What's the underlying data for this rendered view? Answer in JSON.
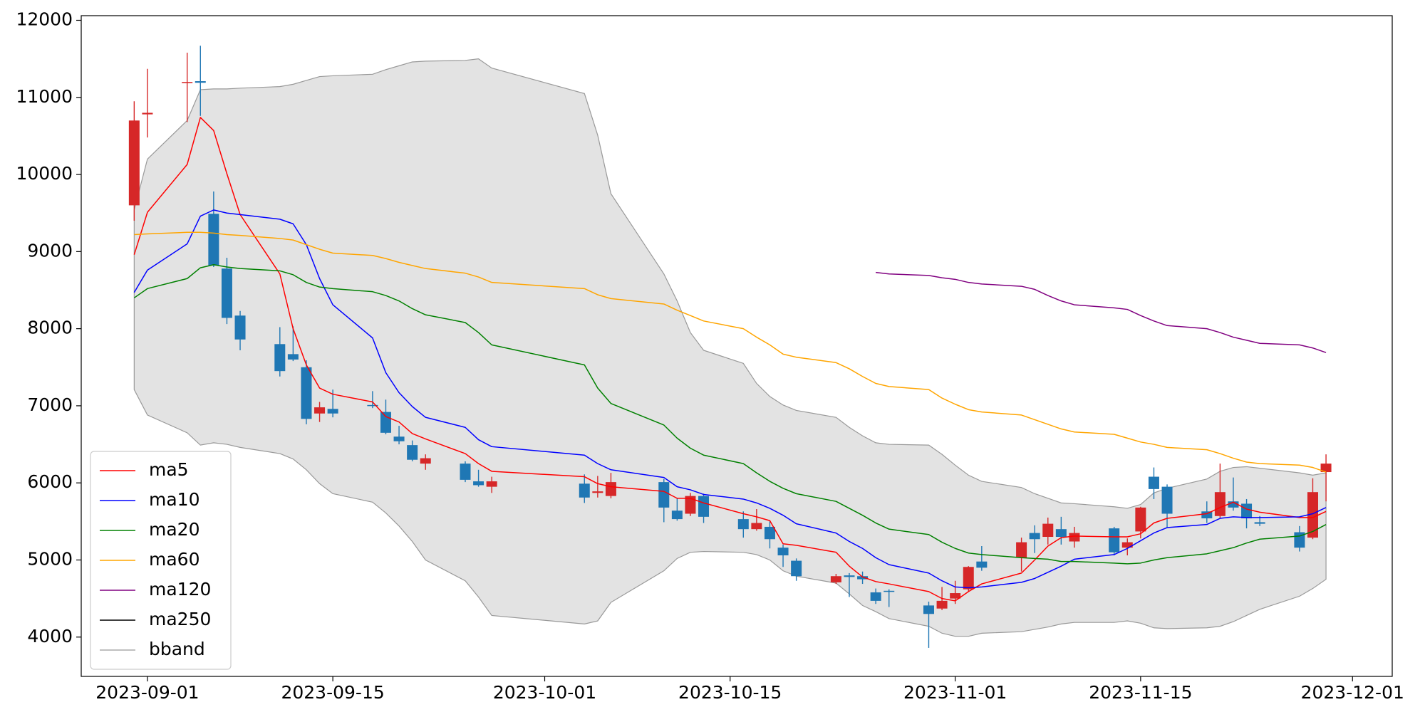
{
  "chart_data": {
    "type": "candlestick",
    "x": [
      "2023-08-31",
      "2023-09-01",
      "2023-09-04",
      "2023-09-05",
      "2023-09-06",
      "2023-09-07",
      "2023-09-08",
      "2023-09-11",
      "2023-09-12",
      "2023-09-13",
      "2023-09-14",
      "2023-09-15",
      "2023-09-18",
      "2023-09-19",
      "2023-09-20",
      "2023-09-21",
      "2023-09-22",
      "2023-09-25",
      "2023-09-26",
      "2023-09-27",
      "2023-10-04",
      "2023-10-05",
      "2023-10-06",
      "2023-10-10",
      "2023-10-11",
      "2023-10-12",
      "2023-10-13",
      "2023-10-16",
      "2023-10-17",
      "2023-10-18",
      "2023-10-19",
      "2023-10-20",
      "2023-10-23",
      "2023-10-24",
      "2023-10-25",
      "2023-10-26",
      "2023-10-27",
      "2023-10-30",
      "2023-10-31",
      "2023-11-01",
      "2023-11-02",
      "2023-11-03",
      "2023-11-06",
      "2023-11-07",
      "2023-11-08",
      "2023-11-09",
      "2023-11-10",
      "2023-11-13",
      "2023-11-14",
      "2023-11-15",
      "2023-11-16",
      "2023-11-17",
      "2023-11-20",
      "2023-11-21",
      "2023-11-22",
      "2023-11-23",
      "2023-11-24",
      "2023-11-27",
      "2023-11-28",
      "2023-11-29"
    ],
    "open": [
      9600,
      10780,
      11190,
      11210,
      9490,
      8780,
      8170,
      7800,
      7670,
      7500,
      6900,
      6960,
      7010,
      6920,
      6600,
      6490,
      6250,
      6250,
      6020,
      5950,
      5990,
      5870,
      5830,
      6010,
      5640,
      5600,
      5830,
      5530,
      5400,
      5430,
      5160,
      4990,
      4710,
      4800,
      4790,
      4580,
      4600,
      4410,
      4370,
      4500,
      4620,
      4980,
      5030,
      5350,
      5300,
      5400,
      5240,
      5410,
      5160,
      5370,
      6080,
      5950,
      5630,
      5570,
      5760,
      5730,
      5490,
      5360,
      5290,
      6140
    ],
    "close": [
      10700,
      10800,
      11200,
      11190,
      8820,
      8140,
      7860,
      7450,
      7600,
      6830,
      6980,
      6900,
      7000,
      6650,
      6540,
      6300,
      6320,
      6040,
      5970,
      6020,
      5810,
      5890,
      6010,
      5680,
      5530,
      5830,
      5560,
      5400,
      5480,
      5270,
      5060,
      4790,
      4790,
      4780,
      4750,
      4470,
      4590,
      4300,
      4470,
      4570,
      4910,
      4900,
      5230,
      5270,
      5470,
      5300,
      5350,
      5100,
      5230,
      5680,
      5920,
      5600,
      5540,
      5880,
      5680,
      5540,
      5470,
      5160,
      5880,
      6250
    ],
    "high": [
      10950,
      11370,
      11580,
      11670,
      9780,
      8920,
      8230,
      8020,
      8030,
      7590,
      7050,
      7210,
      7190,
      7080,
      6740,
      6550,
      6370,
      6280,
      6170,
      6080,
      6110,
      6090,
      6130,
      6050,
      5800,
      5870,
      5860,
      5630,
      5660,
      5500,
      5200,
      5020,
      4820,
      4830,
      4850,
      4630,
      4620,
      4460,
      4650,
      4730,
      4920,
      5180,
      5290,
      5450,
      5550,
      5560,
      5430,
      5430,
      5280,
      5690,
      6200,
      5980,
      5760,
      6250,
      6070,
      5790,
      5570,
      5440,
      6060,
      6370
    ],
    "low": [
      9400,
      10480,
      10680,
      10760,
      8800,
      8060,
      7720,
      7380,
      7580,
      6760,
      6790,
      6850,
      6970,
      6630,
      6500,
      6280,
      6170,
      6010,
      5950,
      5870,
      5740,
      5810,
      5800,
      5490,
      5510,
      5570,
      5480,
      5290,
      5380,
      5150,
      4910,
      4730,
      4690,
      4520,
      4690,
      4430,
      4390,
      3860,
      4350,
      4430,
      4590,
      4860,
      4850,
      5090,
      5200,
      5200,
      5160,
      5060,
      5060,
      5280,
      5790,
      5420,
      5480,
      5540,
      5640,
      5410,
      5440,
      5110,
      5270,
      5760
    ],
    "up_color": "#d62728",
    "down_color": "#1f77b4",
    "series": [
      {
        "name": "ma5",
        "color": "#ff0000",
        "values": [
          8960,
          9510,
          10130,
          10740,
          10570,
          10010,
          9480,
          8710,
          8000,
          7530,
          7230,
          7150,
          7050,
          6860,
          6790,
          6640,
          6570,
          6380,
          6250,
          6150,
          6080,
          5990,
          5950,
          5890,
          5800,
          5800,
          5740,
          5600,
          5560,
          5510,
          5210,
          5190,
          5100,
          4920,
          4780,
          4720,
          4690,
          4590,
          4500,
          4470,
          4590,
          4690,
          4830,
          5000,
          5180,
          5290,
          5310,
          5300,
          5300,
          5340,
          5480,
          5540,
          5600,
          5680,
          5750,
          5660,
          5620,
          5550,
          5550,
          5630
        ]
      },
      {
        "name": "ma10",
        "color": "#0000ff",
        "values": [
          8470,
          8760,
          9100,
          9460,
          9540,
          9500,
          9480,
          9420,
          9360,
          9090,
          8650,
          8310,
          7880,
          7430,
          7170,
          6990,
          6850,
          6720,
          6560,
          6470,
          6360,
          6250,
          6170,
          6070,
          5950,
          5910,
          5850,
          5790,
          5740,
          5670,
          5580,
          5470,
          5350,
          5240,
          5150,
          5030,
          4940,
          4830,
          4730,
          4650,
          4640,
          4650,
          4710,
          4760,
          4840,
          4920,
          5010,
          5070,
          5150,
          5250,
          5350,
          5420,
          5460,
          5540,
          5560,
          5550,
          5550,
          5560,
          5600,
          5680
        ]
      },
      {
        "name": "ma20",
        "color": "#008000",
        "values": [
          8400,
          8520,
          8650,
          8790,
          8830,
          8800,
          8780,
          8750,
          8700,
          8600,
          8540,
          8520,
          8480,
          8430,
          8360,
          8260,
          8180,
          8080,
          7950,
          7790,
          7530,
          7230,
          7030,
          6750,
          6580,
          6450,
          6360,
          6250,
          6130,
          6020,
          5930,
          5860,
          5760,
          5670,
          5580,
          5480,
          5400,
          5330,
          5230,
          5150,
          5090,
          5070,
          5030,
          5020,
          5010,
          4980,
          4980,
          4960,
          4950,
          4960,
          5000,
          5030,
          5080,
          5120,
          5160,
          5220,
          5270,
          5310,
          5370,
          5460
        ]
      },
      {
        "name": "ma60",
        "color": "#ffa500",
        "values": [
          9220,
          9230,
          9250,
          9250,
          9240,
          9220,
          9210,
          9170,
          9150,
          9090,
          9030,
          8980,
          8950,
          8910,
          8860,
          8820,
          8780,
          8720,
          8670,
          8600,
          8520,
          8440,
          8390,
          8320,
          8240,
          8170,
          8100,
          8000,
          7890,
          7790,
          7670,
          7630,
          7560,
          7480,
          7380,
          7290,
          7250,
          7210,
          7100,
          7020,
          6950,
          6920,
          6880,
          6820,
          6760,
          6700,
          6660,
          6630,
          6580,
          6530,
          6500,
          6460,
          6430,
          6380,
          6320,
          6270,
          6250,
          6230,
          6200,
          6140
        ]
      },
      {
        "name": "ma120",
        "color": "#800080",
        "values": [
          null,
          null,
          null,
          null,
          null,
          null,
          null,
          null,
          null,
          null,
          null,
          null,
          null,
          null,
          null,
          null,
          null,
          null,
          null,
          null,
          null,
          null,
          null,
          null,
          null,
          null,
          null,
          null,
          null,
          null,
          null,
          null,
          null,
          null,
          null,
          8730,
          8710,
          8690,
          8660,
          8640,
          8600,
          8580,
          8550,
          8510,
          8430,
          8360,
          8310,
          8270,
          8250,
          8170,
          8100,
          8040,
          8000,
          7950,
          7890,
          7850,
          7810,
          7790,
          7750,
          7690
        ]
      },
      {
        "name": "ma250",
        "color": "#000000",
        "values": [
          null,
          null,
          null,
          null,
          null,
          null,
          null,
          null,
          null,
          null,
          null,
          null,
          null,
          null,
          null,
          null,
          null,
          null,
          null,
          null,
          null,
          null,
          null,
          null,
          null,
          null,
          null,
          null,
          null,
          null,
          null,
          null,
          null,
          null,
          null,
          null,
          null,
          null,
          null,
          null,
          null,
          null,
          null,
          null,
          null,
          null,
          null,
          null,
          null,
          null,
          null,
          null,
          null,
          null,
          null,
          null,
          null,
          null,
          null,
          null
        ]
      }
    ],
    "band": {
      "name": "bband",
      "color": "#999999",
      "fill": "#e3e3e3",
      "upper": [
        9540,
        10200,
        10700,
        11100,
        11110,
        11110,
        11120,
        11140,
        11170,
        11220,
        11270,
        11280,
        11300,
        11360,
        11410,
        11460,
        11470,
        11480,
        11500,
        11380,
        11050,
        10510,
        9750,
        8710,
        8360,
        7950,
        7720,
        7550,
        7290,
        7120,
        7010,
        6940,
        6850,
        6720,
        6610,
        6520,
        6500,
        6490,
        6370,
        6230,
        6100,
        6020,
        5940,
        5860,
        5800,
        5740,
        5730,
        5690,
        5670,
        5720,
        5870,
        5930,
        6050,
        6150,
        6200,
        6210,
        6190,
        6130,
        6100,
        6130
      ],
      "lower": [
        7210,
        6880,
        6650,
        6490,
        6520,
        6500,
        6460,
        6380,
        6310,
        6170,
        5990,
        5860,
        5750,
        5610,
        5440,
        5240,
        5000,
        4730,
        4520,
        4280,
        4170,
        4210,
        4450,
        4860,
        5020,
        5100,
        5110,
        5100,
        5070,
        5000,
        4860,
        4790,
        4700,
        4560,
        4410,
        4330,
        4240,
        4140,
        4050,
        4010,
        4010,
        4050,
        4070,
        4100,
        4130,
        4170,
        4190,
        4190,
        4210,
        4180,
        4120,
        4110,
        4120,
        4140,
        4200,
        4280,
        4360,
        4530,
        4630,
        4750
      ]
    },
    "xlim": [
      "2023-08-27",
      "2023-12-04"
    ],
    "xticks": [
      "2023-09-01",
      "2023-09-15",
      "2023-10-01",
      "2023-10-15",
      "2023-11-01",
      "2023-11-15",
      "2023-12-01"
    ],
    "ylim": [
      3490,
      12060
    ],
    "yticks": [
      4000,
      5000,
      6000,
      7000,
      8000,
      9000,
      10000,
      11000,
      12000
    ],
    "legend": "lower left"
  }
}
